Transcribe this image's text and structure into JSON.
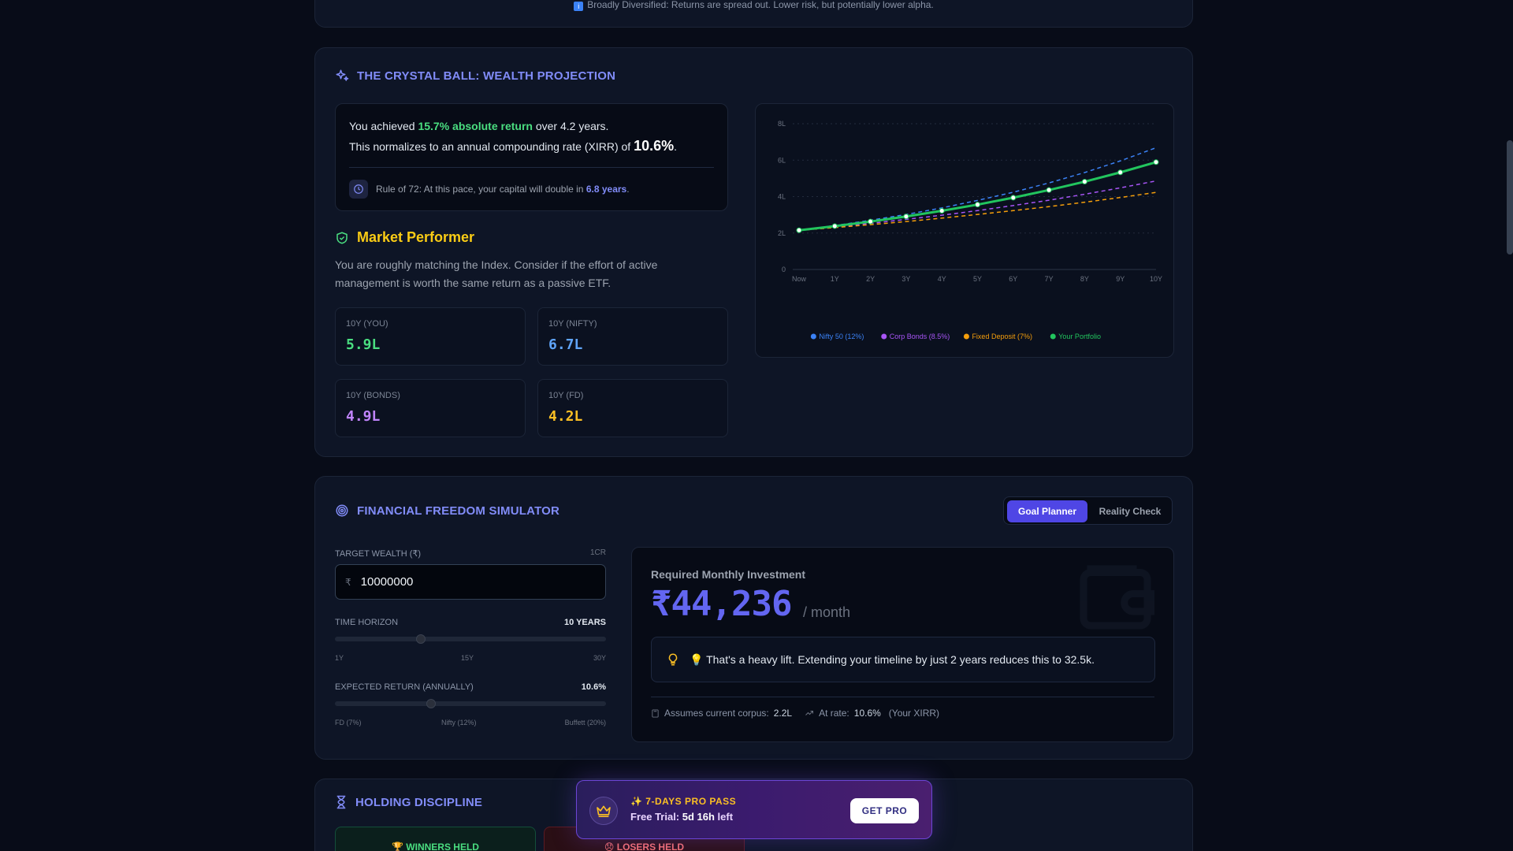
{
  "top_note": {
    "icon": "info-icon",
    "text": "Broadly Diversified: Returns are spread out. Lower risk, but potentially lower alpha."
  },
  "wealth": {
    "title": "THE CRYSTAL BALL: WEALTH PROJECTION",
    "achieved_prefix": "You achieved ",
    "achieved_value": "15.7% absolute return",
    "achieved_mid": " over ",
    "achieved_years": "4.2 years.",
    "xirr_prefix": "This normalizes to an annual compounding rate (XIRR) of ",
    "xirr_value": "10.6%",
    "xirr_suffix": ".",
    "rule_prefix": "Rule of 72: At this pace, your capital will double in ",
    "rule_value": "6.8 years",
    "rule_suffix": ".",
    "perf_title": "Market Performer",
    "perf_desc": "You are roughly matching the Index. Consider if the effort of active management is worth the same return as a passive ETF.",
    "stats": [
      {
        "label": "10Y (YOU)",
        "value": "5.9L",
        "color": "#4ade80"
      },
      {
        "label": "10Y (NIFTY)",
        "value": "6.7L",
        "color": "#60a5fa"
      },
      {
        "label": "10Y (BONDS)",
        "value": "4.9L",
        "color": "#c084fc"
      },
      {
        "label": "10Y (FD)",
        "value": "4.2L",
        "color": "#fbbf24"
      }
    ]
  },
  "chart_data": {
    "type": "line",
    "categories": [
      "Now",
      "1Y",
      "2Y",
      "3Y",
      "4Y",
      "5Y",
      "6Y",
      "7Y",
      "8Y",
      "9Y",
      "10Y"
    ],
    "y_ticks": [
      "0",
      "2L",
      "4L",
      "6L",
      "8L"
    ],
    "ylim": [
      0,
      8
    ],
    "grid": true,
    "legend_position": "bottom",
    "series": [
      {
        "name": "Nifty 50 (12%)",
        "color": "#3b82f6",
        "style": "dashed",
        "values": [
          2.15,
          2.41,
          2.7,
          3.02,
          3.38,
          3.79,
          4.24,
          4.75,
          5.32,
          5.96,
          6.68
        ]
      },
      {
        "name": "Corp Bonds (8.5%)",
        "color": "#a855f7",
        "style": "dashed",
        "values": [
          2.15,
          2.33,
          2.53,
          2.75,
          2.98,
          3.23,
          3.51,
          3.8,
          4.13,
          4.48,
          4.86
        ]
      },
      {
        "name": "Fixed Deposit (7%)",
        "color": "#f59e0b",
        "style": "dashed",
        "values": [
          2.15,
          2.3,
          2.46,
          2.63,
          2.82,
          3.02,
          3.23,
          3.45,
          3.69,
          3.95,
          4.23
        ]
      },
      {
        "name": "Your Portfolio",
        "color": "#22c55e",
        "style": "solid",
        "values": [
          2.15,
          2.38,
          2.63,
          2.91,
          3.22,
          3.56,
          3.94,
          4.36,
          4.82,
          5.33,
          5.89
        ]
      }
    ]
  },
  "simulator": {
    "title": "FINANCIAL FREEDOM SIMULATOR",
    "tab_goal": "Goal Planner",
    "tab_reality": "Reality Check",
    "target_label": "TARGET WEALTH (₹)",
    "target_hint": "1CR",
    "currency": "₹",
    "target_value": "10000000",
    "horizon_label": "TIME HORIZON",
    "horizon_value": "10 YEARS",
    "horizon_min": "1Y",
    "horizon_mid": "15Y",
    "horizon_max": "30Y",
    "horizon_level": 0.31,
    "return_label": "EXPECTED RETURN (ANNUALLY)",
    "return_value": "10.6%",
    "return_min": "FD (7%)",
    "return_mid": "Nifty (12%)",
    "return_max": "Buffett (20%)",
    "return_level": 0.35,
    "req_label": "Required Monthly Investment",
    "req_amount": "₹44,236",
    "req_per": "/ month",
    "tip_text": "💡 That's a heavy lift. Extending your timeline by just 2 years reduces this to 32.5k.",
    "assume_corpus_label": "Assumes current corpus:",
    "assume_corpus_value": "2.2L",
    "assume_rate_label": "At rate:",
    "assume_rate_value": "10.6%",
    "assume_rate_note": "(Your XIRR)"
  },
  "holding": {
    "title": "HOLDING DISCIPLINE",
    "winners": "🏆 WINNERS HELD",
    "losers": "😞 LOSERS HELD"
  },
  "promo": {
    "title": "✨ 7-DAYS PRO PASS",
    "trial_prefix": "Free Trial: ",
    "trial_value": "5d 16h",
    "trial_suffix": " left",
    "button": "GET PRO"
  }
}
